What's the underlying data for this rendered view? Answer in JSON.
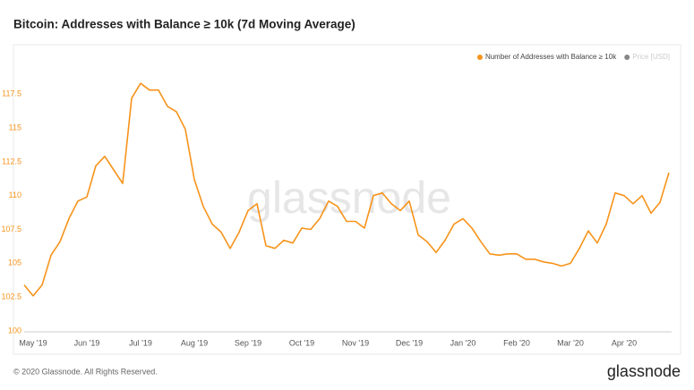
{
  "chart_data": {
    "type": "line",
    "title": "Bitcoin: Addresses with Balance ≥ 10k (7d Moving Average)",
    "watermark": "glassnode",
    "categories": [
      null,
      "May '19",
      null,
      null,
      null,
      null,
      null,
      "Jun '19",
      null,
      null,
      null,
      null,
      null,
      "Jul '19",
      null,
      null,
      null,
      null,
      null,
      "Aug '19",
      null,
      null,
      null,
      null,
      null,
      "Sep '19",
      null,
      null,
      null,
      null,
      null,
      "Oct '19",
      null,
      null,
      null,
      null,
      null,
      "Nov '19",
      null,
      null,
      null,
      null,
      null,
      "Dec '19",
      null,
      null,
      null,
      null,
      null,
      "Jan '20",
      null,
      null,
      null,
      null,
      null,
      "Feb '20",
      null,
      null,
      null,
      null,
      null,
      "Mar '20",
      null,
      null,
      null,
      null,
      null,
      "Apr '20",
      null,
      null,
      null,
      null,
      null
    ],
    "series": [
      {
        "name": "Number of Addresses with Balance ≥ 10k",
        "color": "#f7931a",
        "values": [
          103.4,
          102.6,
          103.4,
          105.6,
          106.6,
          108.3,
          109.6,
          109.9,
          112.2,
          112.9,
          111.9,
          110.9,
          117.2,
          118.3,
          117.8,
          117.8,
          116.6,
          116.2,
          114.9,
          111.2,
          109.2,
          107.9,
          107.3,
          106.1,
          107.3,
          108.9,
          109.4,
          106.3,
          106.1,
          106.7,
          106.5,
          107.6,
          107.5,
          108.3,
          109.6,
          109.2,
          108.1,
          108.1,
          107.6,
          110.0,
          110.2,
          109.4,
          108.9,
          109.6,
          107.1,
          106.6,
          105.8,
          106.7,
          107.9,
          108.3,
          107.6,
          106.6,
          105.7,
          105.6,
          105.7,
          105.7,
          105.3,
          105.3,
          105.1,
          105.0,
          104.8,
          105.0,
          106.1,
          107.4,
          106.5,
          107.9,
          110.2,
          110.0,
          109.4,
          110.0,
          108.7,
          109.5,
          111.7
        ]
      },
      {
        "name": "Price [USD]",
        "color": "#888888",
        "visible": false
      }
    ],
    "ylim": [
      100,
      119.5
    ],
    "yticks": [
      100,
      102.5,
      105,
      107.5,
      110,
      112.5,
      115,
      117.5
    ],
    "grid": false,
    "legend": "top-right"
  },
  "footer": {
    "copyright": "© 2020 Glassnode. All Rights Reserved.",
    "brand": "glassnode"
  }
}
